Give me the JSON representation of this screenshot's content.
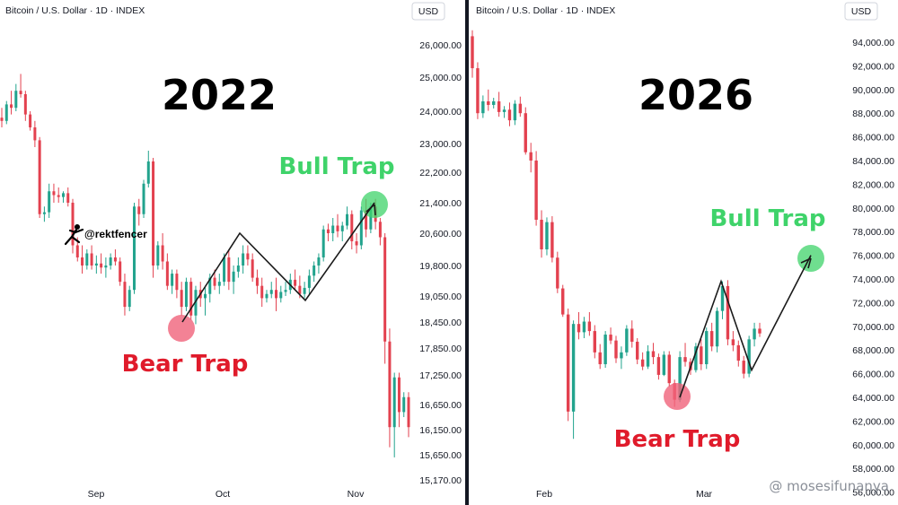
{
  "colors": {
    "up": "#22a38d",
    "down": "#e3414f",
    "bull_dot": "#3fd36a",
    "bear_dot": "#f0637a",
    "divider": "#131722"
  },
  "watermark": "@ mosesifunanya",
  "chart_data": [
    {
      "type": "candlestick",
      "header": "Bitcoin / U.S. Dollar · 1D · INDEX",
      "title": "2022",
      "currency": "USD",
      "user_tag": "@rektfencer",
      "y_ticks": [
        "26,000.00",
        "25,000.00",
        "24,000.00",
        "23,000.00",
        "22,200.00",
        "21,400.00",
        "20,600.00",
        "19,800.00",
        "19,050.00",
        "18,450.00",
        "17,850.00",
        "17,250.00",
        "16,650.00",
        "16,150.00",
        "15,650.00",
        "15,170.00"
      ],
      "x_ticks": [
        "Sep",
        "Oct",
        "Nov"
      ],
      "annotations": [
        "Bull Trap",
        "Bear Trap"
      ],
      "trap_path": [
        18450,
        20600,
        18950,
        21400
      ],
      "candles": [
        [
          23800,
          24100,
          23500,
          23700
        ],
        [
          23700,
          24300,
          23600,
          24200
        ],
        [
          24200,
          24600,
          23900,
          24100
        ],
        [
          24100,
          24800,
          24000,
          24600
        ],
        [
          24600,
          25100,
          24400,
          24500
        ],
        [
          24500,
          24600,
          23700,
          23900
        ],
        [
          23900,
          24000,
          23400,
          23500
        ],
        [
          23500,
          23700,
          22900,
          23100
        ],
        [
          23100,
          23200,
          21000,
          21100
        ],
        [
          21100,
          21300,
          20900,
          21150
        ],
        [
          21150,
          21900,
          21000,
          21700
        ],
        [
          21700,
          21900,
          21400,
          21600
        ],
        [
          21600,
          21800,
          21400,
          21550
        ],
        [
          21550,
          21700,
          21400,
          21650
        ],
        [
          21650,
          21800,
          21300,
          21400
        ],
        [
          21400,
          21500,
          20100,
          20300
        ],
        [
          20300,
          20500,
          19900,
          20000
        ],
        [
          20000,
          20300,
          19600,
          19800
        ],
        [
          19800,
          20200,
          19700,
          20100
        ],
        [
          20100,
          20300,
          19700,
          19800
        ],
        [
          19800,
          20050,
          19600,
          19850
        ],
        [
          19850,
          20100,
          19600,
          19750
        ],
        [
          19750,
          20000,
          19500,
          19800
        ],
        [
          19800,
          20100,
          19700,
          20000
        ],
        [
          20000,
          20200,
          19800,
          19900
        ],
        [
          19900,
          20000,
          19300,
          19400
        ],
        [
          19400,
          19600,
          18600,
          18800
        ],
        [
          18800,
          19300,
          18700,
          19200
        ],
        [
          19200,
          21400,
          19100,
          21300
        ],
        [
          21300,
          21500,
          20800,
          21100
        ],
        [
          21100,
          22000,
          21000,
          21900
        ],
        [
          21900,
          22800,
          21800,
          22500
        ],
        [
          22500,
          22600,
          19500,
          19800
        ],
        [
          19800,
          20400,
          19700,
          20300
        ],
        [
          20300,
          20600,
          19700,
          19900
        ],
        [
          19900,
          20100,
          19200,
          19300
        ],
        [
          19300,
          19700,
          19100,
          19600
        ],
        [
          19600,
          19700,
          19000,
          19200
        ],
        [
          19200,
          19400,
          18600,
          18800
        ],
        [
          18800,
          19500,
          18700,
          19400
        ],
        [
          19400,
          19500,
          18500,
          18600
        ],
        [
          18600,
          19300,
          18400,
          19200
        ],
        [
          19200,
          19400,
          18800,
          19000
        ],
        [
          19000,
          19300,
          18600,
          19100
        ],
        [
          19100,
          19600,
          18900,
          19500
        ],
        [
          19500,
          19700,
          19200,
          19300
        ],
        [
          19300,
          19600,
          19100,
          19400
        ],
        [
          19400,
          20100,
          19300,
          20000
        ],
        [
          20000,
          20200,
          19200,
          19400
        ],
        [
          19400,
          19800,
          19100,
          19650
        ],
        [
          19650,
          20000,
          19500,
          19800
        ],
        [
          19800,
          20300,
          19600,
          20100
        ],
        [
          20100,
          20300,
          19800,
          19950
        ],
        [
          19950,
          20100,
          19400,
          19500
        ],
        [
          19500,
          19700,
          19100,
          19300
        ],
        [
          19300,
          19500,
          18800,
          19000
        ],
        [
          19000,
          19200,
          18900,
          19100
        ],
        [
          19100,
          19400,
          19000,
          19200
        ],
        [
          19200,
          19500,
          18700,
          19000
        ],
        [
          19000,
          19300,
          18900,
          19150
        ],
        [
          19150,
          19400,
          19050,
          19200
        ],
        [
          19200,
          19600,
          19100,
          19450
        ],
        [
          19450,
          19700,
          19200,
          19300
        ],
        [
          19300,
          19550,
          19000,
          19100
        ],
        [
          19100,
          19400,
          19000,
          19250
        ],
        [
          19250,
          19700,
          19100,
          19550
        ],
        [
          19550,
          19900,
          19400,
          19800
        ],
        [
          19800,
          20100,
          19600,
          20000
        ],
        [
          20000,
          20800,
          19900,
          20700
        ],
        [
          20700,
          20850,
          20400,
          20600
        ],
        [
          20600,
          21000,
          20400,
          20800
        ],
        [
          20800,
          21100,
          20500,
          20650
        ],
        [
          20650,
          20900,
          20400,
          20800
        ],
        [
          20800,
          21300,
          20700,
          21100
        ],
        [
          21100,
          21200,
          20200,
          20400
        ],
        [
          20400,
          20600,
          20100,
          20300
        ],
        [
          20300,
          21300,
          20200,
          21200
        ],
        [
          21200,
          21500,
          20500,
          20700
        ],
        [
          20700,
          21400,
          20600,
          21300
        ],
        [
          21300,
          21500,
          20700,
          20900
        ],
        [
          20900,
          21000,
          20300,
          20500
        ],
        [
          20500,
          20600,
          17500,
          18000
        ],
        [
          18000,
          18300,
          15800,
          16200
        ],
        [
          16200,
          17300,
          15600,
          17200
        ],
        [
          17200,
          17300,
          16200,
          16500
        ],
        [
          16500,
          16900,
          16400,
          16800
        ],
        [
          16800,
          16900,
          16000,
          16200
        ]
      ]
    },
    {
      "type": "candlestick",
      "header": "Bitcoin / U.S. Dollar · 1D · INDEX",
      "title": "2026",
      "currency": "USD",
      "y_ticks": [
        "94,000.00",
        "92,000.00",
        "90,000.00",
        "88,000.00",
        "86,000.00",
        "84,000.00",
        "82,000.00",
        "80,000.00",
        "78,000.00",
        "76,000.00",
        "74,000.00",
        "72,000.00",
        "70,000.00",
        "68,000.00",
        "66,000.00",
        "64,000.00",
        "62,000.00",
        "60,000.00",
        "58,000.00",
        "56,000.00"
      ],
      "x_ticks": [
        "Feb",
        "Mar"
      ],
      "annotations": [
        "Bull Trap",
        "Bear Trap"
      ],
      "trap_path": [
        64000,
        73800,
        66300,
        76000
      ],
      "candles": [
        [
          94500,
          95000,
          91000,
          91800
        ],
        [
          91800,
          92300,
          87500,
          88000
        ],
        [
          88000,
          89500,
          87600,
          89000
        ],
        [
          89000,
          90000,
          88200,
          88700
        ],
        [
          88700,
          89300,
          88400,
          89000
        ],
        [
          89000,
          89800,
          87700,
          88100
        ],
        [
          88100,
          88600,
          87600,
          88300
        ],
        [
          88300,
          88900,
          86900,
          87400
        ],
        [
          87400,
          89100,
          87000,
          88800
        ],
        [
          88800,
          89400,
          87700,
          88000
        ],
        [
          88000,
          88500,
          84500,
          84700
        ],
        [
          84700,
          85500,
          83000,
          84000
        ],
        [
          84000,
          84800,
          78500,
          79000
        ],
        [
          79000,
          79800,
          75800,
          76500
        ],
        [
          76500,
          79200,
          76000,
          78800
        ],
        [
          78800,
          79300,
          75400,
          75800
        ],
        [
          75800,
          76300,
          72800,
          73200
        ],
        [
          73200,
          73500,
          70800,
          71000
        ],
        [
          71000,
          71500,
          62000,
          62800
        ],
        [
          62800,
          70500,
          60500,
          70200
        ],
        [
          70200,
          71200,
          68900,
          69500
        ],
        [
          69500,
          70800,
          69000,
          70400
        ],
        [
          70400,
          71200,
          69200,
          69600
        ],
        [
          69600,
          70100,
          67300,
          67800
        ],
        [
          67800,
          68500,
          66400,
          66800
        ],
        [
          66800,
          69600,
          66500,
          69300
        ],
        [
          69300,
          69900,
          68500,
          68800
        ],
        [
          68800,
          69200,
          66900,
          67300
        ],
        [
          67300,
          68300,
          66400,
          67800
        ],
        [
          67800,
          70100,
          67500,
          69800
        ],
        [
          69800,
          70500,
          68200,
          68700
        ],
        [
          68700,
          69000,
          66800,
          67200
        ],
        [
          67200,
          67800,
          66300,
          66600
        ],
        [
          66600,
          68400,
          66400,
          67900
        ],
        [
          67900,
          68600,
          66800,
          67400
        ],
        [
          67400,
          67700,
          65500,
          65900
        ],
        [
          65900,
          67900,
          65800,
          67600
        ],
        [
          67600,
          67900,
          64900,
          65200
        ],
        [
          65200,
          65500,
          63200,
          63800
        ],
        [
          63800,
          67900,
          63600,
          67400
        ],
        [
          67400,
          68600,
          66600,
          67000
        ],
        [
          67000,
          67300,
          65900,
          66300
        ],
        [
          66300,
          68600,
          66100,
          68300
        ],
        [
          68300,
          68900,
          66300,
          66800
        ],
        [
          66800,
          69900,
          66400,
          69600
        ],
        [
          69600,
          70300,
          67900,
          68300
        ],
        [
          68300,
          71600,
          67800,
          71300
        ],
        [
          71300,
          73800,
          70600,
          73400
        ],
        [
          73400,
          73900,
          68400,
          68900
        ],
        [
          68900,
          69600,
          67900,
          68400
        ],
        [
          68400,
          68800,
          66600,
          67100
        ],
        [
          67100,
          67500,
          65600,
          66000
        ],
        [
          66000,
          69200,
          65700,
          68900
        ],
        [
          68900,
          70300,
          68300,
          69800
        ],
        [
          69800,
          70300,
          69100,
          69400
        ]
      ]
    }
  ]
}
